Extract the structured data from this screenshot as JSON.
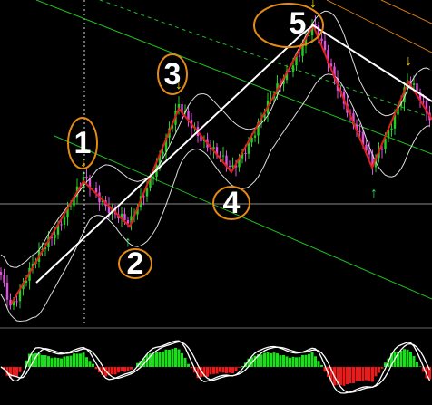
{
  "wave_labels": [
    "1",
    "2",
    "3",
    "4",
    "5"
  ]
}
